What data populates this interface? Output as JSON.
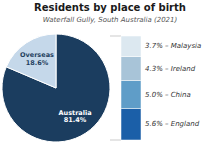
{
  "chart_data": [
    {
      "type": "pie",
      "title": "Residents by place of birth",
      "subtitle": "Waterfall Gully, South Australia (2021)",
      "values": [
        81.4,
        18.6
      ],
      "value_labels": [
        "Australia\n81.4%",
        "Overseas\n18.6%"
      ],
      "colors": [
        "#1b3d5f",
        "#c5d8ea"
      ],
      "data_labels": true
    },
    {
      "type": "bar",
      "stacked": true,
      "values": [
        5.6,
        5.0,
        4.3,
        3.7
      ],
      "value_labels": [
        "5.6% – England",
        "5.0% – China",
        "4.3% – Ireland",
        "3.7% – Malaysia"
      ],
      "colors": [
        "#1b5fa8",
        "#5f9dc8",
        "#a8c4d8",
        "#dce8f0"
      ],
      "data_labels": true,
      "tick_labels": false
    }
  ]
}
